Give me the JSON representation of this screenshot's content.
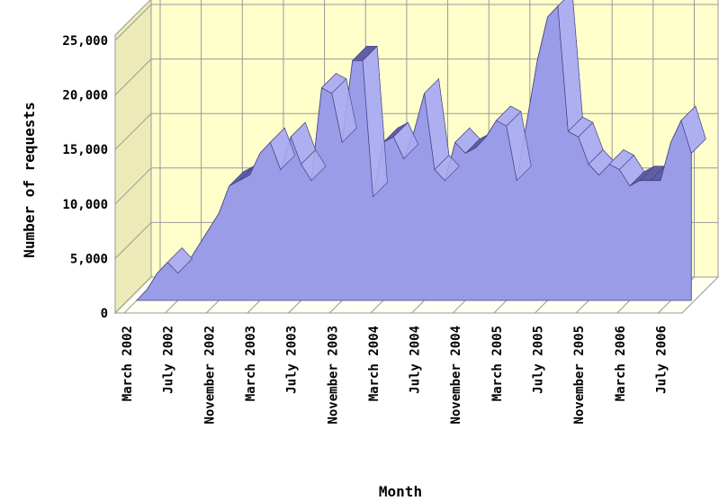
{
  "chart_data": {
    "type": "area",
    "style": "3d-ribbon",
    "title": "",
    "xlabel": "Month",
    "ylabel": "Number of requests",
    "ylim": [
      0,
      25000
    ],
    "y_ticks": [
      "0",
      "5,000",
      "10,000",
      "15,000",
      "20,000",
      "25,000"
    ],
    "y_tick_values": [
      0,
      5000,
      10000,
      15000,
      20000,
      25000
    ],
    "x_tick_labels": [
      "March 2002",
      "July 2002",
      "November 2002",
      "March 2003",
      "July 2003",
      "November 2003",
      "March 2004",
      "July 2004",
      "November 2004",
      "March 2005",
      "July 2005",
      "November 2005",
      "March 2006",
      "July 2006"
    ],
    "grid": true,
    "legend": "none",
    "x": [
      "2002-03",
      "2002-04",
      "2002-05",
      "2002-06",
      "2002-07",
      "2002-08",
      "2002-09",
      "2002-10",
      "2002-11",
      "2002-12",
      "2003-01",
      "2003-02",
      "2003-03",
      "2003-04",
      "2003-05",
      "2003-06",
      "2003-07",
      "2003-08",
      "2003-09",
      "2003-10",
      "2003-11",
      "2003-12",
      "2004-01",
      "2004-02",
      "2004-03",
      "2004-04",
      "2004-05",
      "2004-06",
      "2004-07",
      "2004-08",
      "2004-09",
      "2004-10",
      "2004-11",
      "2004-12",
      "2005-01",
      "2005-02",
      "2005-03",
      "2005-04",
      "2005-05",
      "2005-06",
      "2005-07",
      "2005-08",
      "2005-09",
      "2005-10",
      "2005-11",
      "2005-12",
      "2006-01",
      "2006-02",
      "2006-03",
      "2006-04",
      "2006-05",
      "2006-06",
      "2006-07",
      "2006-08",
      "2006-09"
    ],
    "series": [
      {
        "values": [
          0,
          1000,
          2500,
          3500,
          2500,
          3500,
          5000,
          6500,
          8000,
          10500,
          11000,
          11500,
          13500,
          14500,
          12000,
          15000,
          12500,
          11000,
          19500,
          19000,
          14500,
          22000,
          22000,
          9500,
          14500,
          15000,
          13000,
          15500,
          19000,
          12000,
          11000,
          14500,
          13500,
          14000,
          15000,
          16500,
          16000,
          11000,
          16500,
          22000,
          26000,
          27000,
          15500,
          15000,
          12500,
          11500,
          12500,
          12000,
          10500,
          11000,
          11000,
          11000,
          14500,
          16500,
          13500
        ]
      }
    ],
    "colors": {
      "background": "#ffffff",
      "wall": "#ffffcc",
      "side_wall": "#ecebb8",
      "floor": "#fffff2",
      "grid": "#999999",
      "ribbon_front": "#9b9ce8",
      "ribbon_top": "#aeaff0",
      "ribbon_dark": "#5f5fa8",
      "outline": "#404080"
    }
  }
}
